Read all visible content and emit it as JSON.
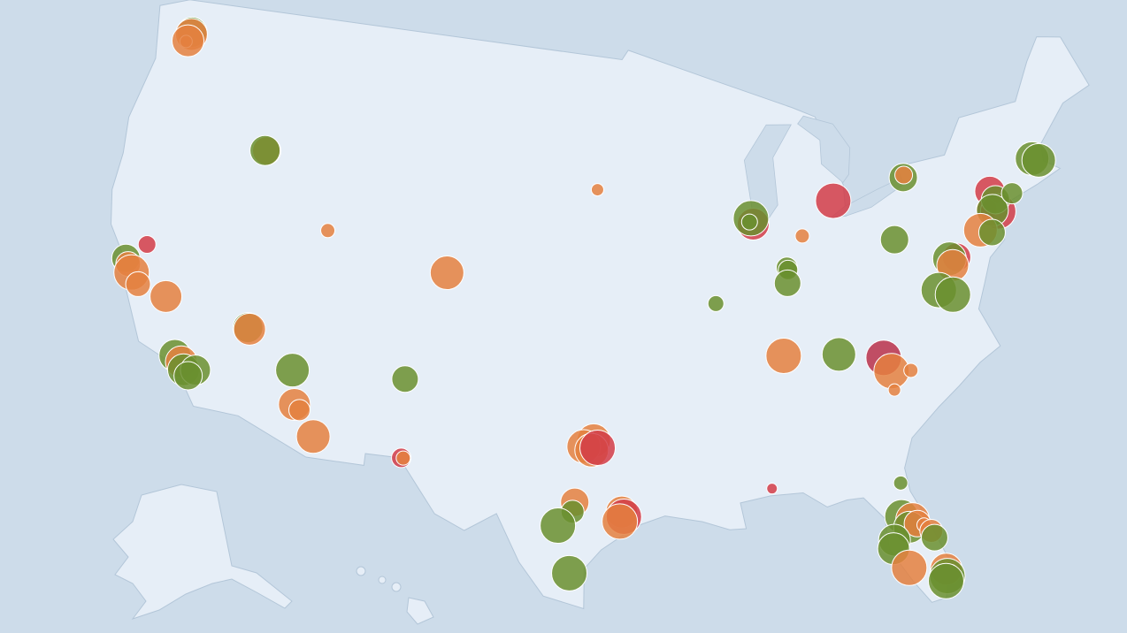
{
  "map": {
    "points": [
      {
        "lon": -122.3,
        "lat": 47.7,
        "size": 17,
        "color": "#6a8f2f"
      },
      {
        "lon": -122.3,
        "lat": 47.6,
        "size": 18,
        "color": "#e4803f"
      },
      {
        "lon": -122.5,
        "lat": 47.25,
        "size": 7,
        "color": "#e4803f"
      },
      {
        "lon": -122.4,
        "lat": 47.3,
        "size": 18,
        "color": "#e4803f"
      },
      {
        "lon": -116.2,
        "lat": 43.6,
        "size": 16,
        "color": "#e4803f"
      },
      {
        "lon": -116.3,
        "lat": 43.6,
        "size": 17,
        "color": "#6a8f2f"
      },
      {
        "lon": -121.5,
        "lat": 38.6,
        "size": 10,
        "color": "#d23c48"
      },
      {
        "lon": -122.4,
        "lat": 37.8,
        "size": 16,
        "color": "#6a8f2f"
      },
      {
        "lon": -122.2,
        "lat": 37.6,
        "size": 14,
        "color": "#e4803f"
      },
      {
        "lon": -121.9,
        "lat": 37.3,
        "size": 20,
        "color": "#e4803f"
      },
      {
        "lon": -121.4,
        "lat": 36.9,
        "size": 14,
        "color": "#e4803f"
      },
      {
        "lon": -119.8,
        "lat": 36.7,
        "size": 18,
        "color": "#e4803f"
      },
      {
        "lon": -111.9,
        "lat": 40.8,
        "size": 8,
        "color": "#e4803f"
      },
      {
        "lon": -115.2,
        "lat": 36.2,
        "size": 17,
        "color": "#6a8f2f"
      },
      {
        "lon": -115.1,
        "lat": 36.15,
        "size": 18,
        "color": "#e4803f"
      },
      {
        "lon": -118.6,
        "lat": 34.4,
        "size": 18,
        "color": "#6a8f2f"
      },
      {
        "lon": -118.2,
        "lat": 34.2,
        "size": 18,
        "color": "#e4803f"
      },
      {
        "lon": -118.0,
        "lat": 33.9,
        "size": 18,
        "color": "#6a8f2f"
      },
      {
        "lon": -117.4,
        "lat": 34.0,
        "size": 17,
        "color": "#6a8f2f"
      },
      {
        "lon": -117.7,
        "lat": 33.7,
        "size": 16,
        "color": "#6a8f2f"
      },
      {
        "lon": -112.5,
        "lat": 34.8,
        "size": 19,
        "color": "#6a8f2f"
      },
      {
        "lon": -112.1,
        "lat": 33.4,
        "size": 18,
        "color": "#e4803f"
      },
      {
        "lon": -111.8,
        "lat": 33.2,
        "size": 12,
        "color": "#e4803f"
      },
      {
        "lon": -110.9,
        "lat": 32.2,
        "size": 19,
        "color": "#e4803f"
      },
      {
        "lon": -105.0,
        "lat": 39.7,
        "size": 19,
        "color": "#e4803f"
      },
      {
        "lon": -106.65,
        "lat": 35.1,
        "size": 15,
        "color": "#6a8f2f"
      },
      {
        "lon": -106.4,
        "lat": 31.8,
        "size": 11,
        "color": "#d23c48"
      },
      {
        "lon": -106.3,
        "lat": 31.8,
        "size": 8,
        "color": "#e4803f"
      },
      {
        "lon": -96.8,
        "lat": 33.0,
        "size": 19,
        "color": "#e4803f"
      },
      {
        "lon": -97.3,
        "lat": 32.75,
        "size": 19,
        "color": "#e4803f"
      },
      {
        "lon": -96.9,
        "lat": 32.6,
        "size": 19,
        "color": "#e4803f"
      },
      {
        "lon": -96.6,
        "lat": 32.7,
        "size": 20,
        "color": "#d23c48"
      },
      {
        "lon": -97.7,
        "lat": 30.4,
        "size": 16,
        "color": "#e4803f"
      },
      {
        "lon": -97.8,
        "lat": 30.0,
        "size": 13,
        "color": "#6a8f2f"
      },
      {
        "lon": -98.5,
        "lat": 29.4,
        "size": 20,
        "color": "#6a8f2f"
      },
      {
        "lon": -95.4,
        "lat": 30.0,
        "size": 18,
        "color": "#e4803f"
      },
      {
        "lon": -95.3,
        "lat": 29.8,
        "size": 20,
        "color": "#d23c48"
      },
      {
        "lon": -95.5,
        "lat": 29.6,
        "size": 20,
        "color": "#e4803f"
      },
      {
        "lon": -97.9,
        "lat": 27.4,
        "size": 20,
        "color": "#6a8f2f"
      },
      {
        "lon": -96.7,
        "lat": 43.5,
        "size": 7,
        "color": "#e4803f"
      },
      {
        "lon": -87.8,
        "lat": 41.8,
        "size": 18,
        "color": "#d23c48"
      },
      {
        "lon": -87.9,
        "lat": 42.05,
        "size": 20,
        "color": "#6a8f2f"
      },
      {
        "lon": -88.0,
        "lat": 41.9,
        "size": 9,
        "color": "#6a8f2f"
      },
      {
        "lon": -90.2,
        "lat": 38.6,
        "size": 9,
        "color": "#6a8f2f"
      },
      {
        "lon": -83.1,
        "lat": 42.4,
        "size": 20,
        "color": "#d23c48"
      },
      {
        "lon": -85.1,
        "lat": 41.1,
        "size": 8,
        "color": "#e4803f"
      },
      {
        "lon": -86.15,
        "lat": 39.85,
        "size": 12,
        "color": "#6a8f2f"
      },
      {
        "lon": -86.1,
        "lat": 39.75,
        "size": 11,
        "color": "#6a8f2f"
      },
      {
        "lon": -86.2,
        "lat": 39.2,
        "size": 15,
        "color": "#6a8f2f"
      },
      {
        "lon": -86.8,
        "lat": 36.2,
        "size": 20,
        "color": "#e4803f"
      },
      {
        "lon": -83.9,
        "lat": 36.0,
        "size": 19,
        "color": "#6a8f2f"
      },
      {
        "lon": -81.6,
        "lat": 35.6,
        "size": 20,
        "color": "#b8304a"
      },
      {
        "lon": -81.3,
        "lat": 35.0,
        "size": 20,
        "color": "#e4803f"
      },
      {
        "lon": -80.3,
        "lat": 34.9,
        "size": 8,
        "color": "#e4803f"
      },
      {
        "lon": -81.3,
        "lat": 34.2,
        "size": 7,
        "color": "#e4803f"
      },
      {
        "lon": -78.9,
        "lat": 42.9,
        "size": 16,
        "color": "#6a8f2f"
      },
      {
        "lon": -78.85,
        "lat": 43.0,
        "size": 10,
        "color": "#e4803f"
      },
      {
        "lon": -80.0,
        "lat": 40.4,
        "size": 16,
        "color": "#6a8f2f"
      },
      {
        "lon": -76.8,
        "lat": 39.2,
        "size": 16,
        "color": "#d23c48"
      },
      {
        "lon": -77.2,
        "lat": 39.2,
        "size": 19,
        "color": "#6a8f2f"
      },
      {
        "lon": -77.1,
        "lat": 38.9,
        "size": 18,
        "color": "#e4803f"
      },
      {
        "lon": -78.1,
        "lat": 38.0,
        "size": 20,
        "color": "#6a8f2f"
      },
      {
        "lon": -77.4,
        "lat": 37.7,
        "size": 20,
        "color": "#6a8f2f"
      },
      {
        "lon": -74.2,
        "lat": 41.6,
        "size": 17,
        "color": "#d23c48"
      },
      {
        "lon": -74.6,
        "lat": 40.9,
        "size": 12,
        "color": "#d23c48"
      },
      {
        "lon": -74.0,
        "lat": 40.7,
        "size": 20,
        "color": "#d23c48"
      },
      {
        "lon": -74.0,
        "lat": 41.2,
        "size": 16,
        "color": "#6a8f2f"
      },
      {
        "lon": -74.3,
        "lat": 40.8,
        "size": 18,
        "color": "#6a8f2f"
      },
      {
        "lon": -75.2,
        "lat": 40.1,
        "size": 19,
        "color": "#e4803f"
      },
      {
        "lon": -74.6,
        "lat": 39.9,
        "size": 15,
        "color": "#6a8f2f"
      },
      {
        "lon": -73.0,
        "lat": 41.3,
        "size": 12,
        "color": "#6a8f2f"
      },
      {
        "lon": -71.4,
        "lat": 42.5,
        "size": 19,
        "color": "#6a8f2f"
      },
      {
        "lon": -71.06,
        "lat": 42.36,
        "size": 19,
        "color": "#6a8f2f"
      },
      {
        "lon": -88.0,
        "lat": 30.7,
        "size": 6,
        "color": "#d23c48"
      },
      {
        "lon": -81.7,
        "lat": 30.3,
        "size": 8,
        "color": "#6a8f2f"
      },
      {
        "lon": -81.9,
        "lat": 28.9,
        "size": 19,
        "color": "#6a8f2f"
      },
      {
        "lon": -81.4,
        "lat": 28.7,
        "size": 19,
        "color": "#e4803f"
      },
      {
        "lon": -81.6,
        "lat": 28.4,
        "size": 18,
        "color": "#6a8f2f"
      },
      {
        "lon": -81.2,
        "lat": 28.5,
        "size": 15,
        "color": "#e4803f"
      },
      {
        "lon": -80.9,
        "lat": 28.4,
        "size": 8,
        "color": "#e4803f"
      },
      {
        "lon": -82.4,
        "lat": 27.95,
        "size": 18,
        "color": "#6a8f2f"
      },
      {
        "lon": -82.5,
        "lat": 27.6,
        "size": 18,
        "color": "#6a8f2f"
      },
      {
        "lon": -81.9,
        "lat": 26.7,
        "size": 20,
        "color": "#e4803f"
      },
      {
        "lon": -80.6,
        "lat": 28.1,
        "size": 13,
        "color": "#e4803f"
      },
      {
        "lon": -80.5,
        "lat": 27.8,
        "size": 15,
        "color": "#6a8f2f"
      },
      {
        "lon": -80.2,
        "lat": 26.4,
        "size": 18,
        "color": "#e4803f"
      },
      {
        "lon": -80.2,
        "lat": 26.1,
        "size": 20,
        "color": "#6a8f2f"
      },
      {
        "lon": -80.3,
        "lat": 25.9,
        "size": 20,
        "color": "#6a8f2f"
      }
    ]
  }
}
